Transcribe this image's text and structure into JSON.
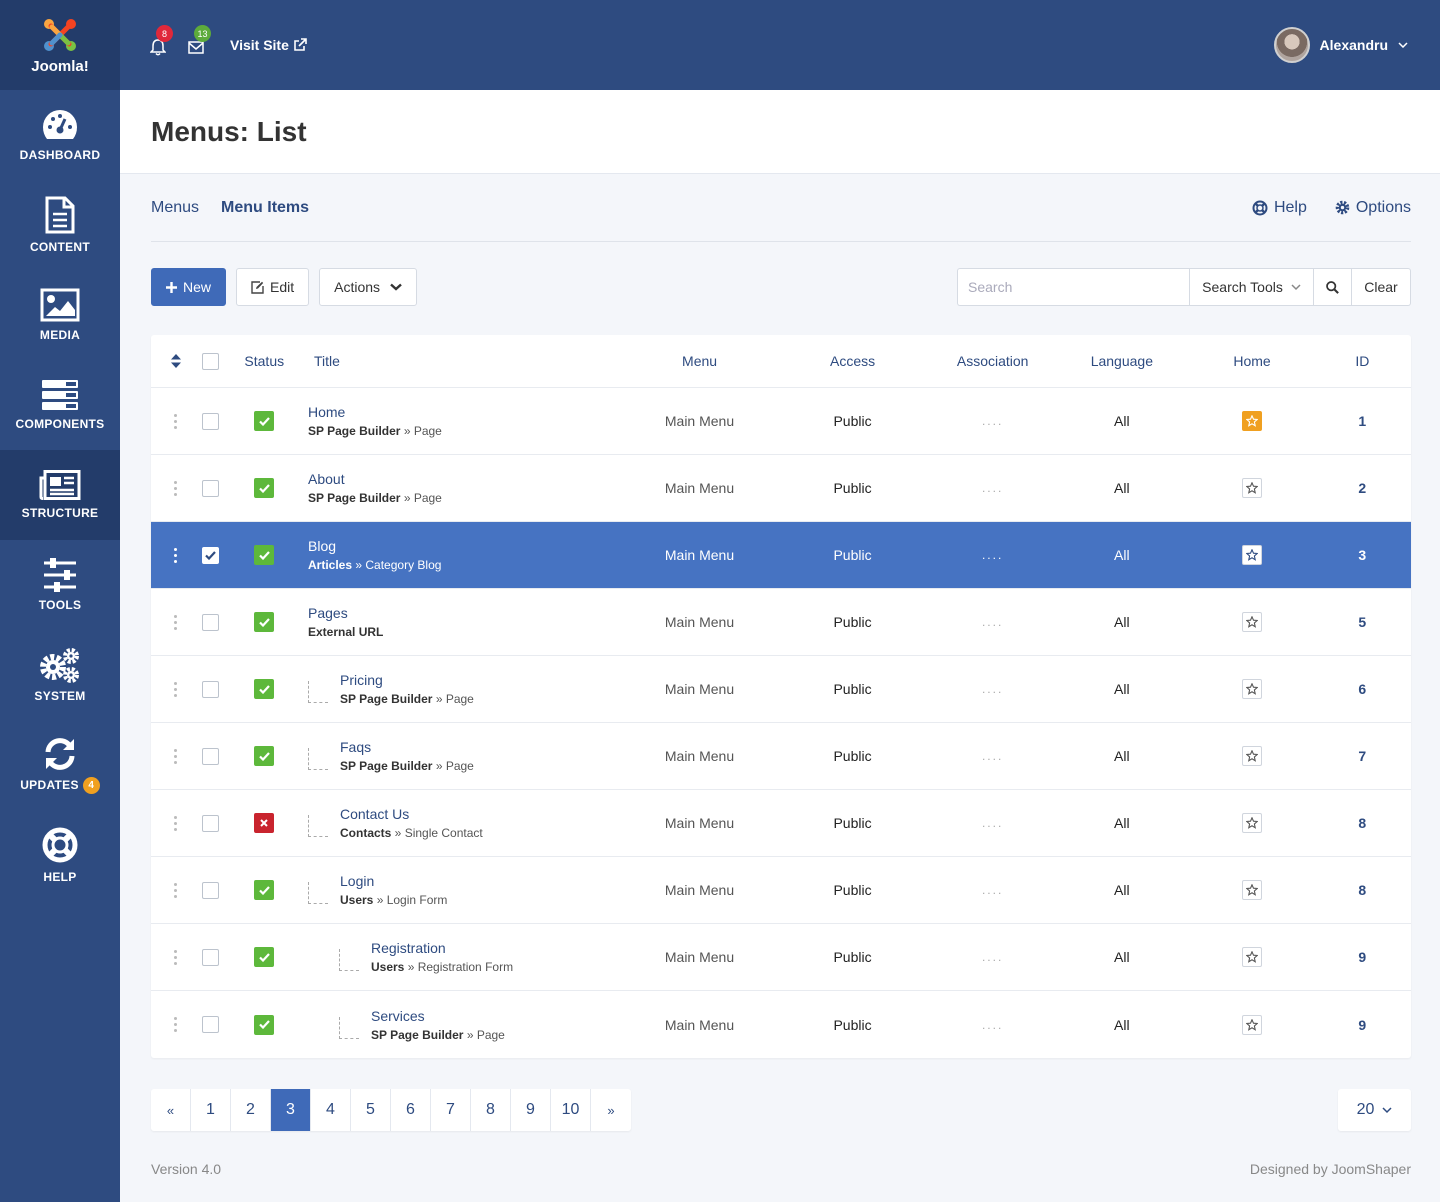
{
  "brand": {
    "name": "Joomla!"
  },
  "sidebar": {
    "items": [
      {
        "label": "DASHBOARD",
        "icon": "dashboard-icon"
      },
      {
        "label": "CONTENT",
        "icon": "document-icon"
      },
      {
        "label": "MEDIA",
        "icon": "image-icon"
      },
      {
        "label": "COMPONENTS",
        "icon": "components-icon"
      },
      {
        "label": "STRUCTURE",
        "icon": "newspaper-icon",
        "active": true
      },
      {
        "label": "TOOLS",
        "icon": "sliders-icon"
      },
      {
        "label": "SYSTEM",
        "icon": "cogs-icon"
      },
      {
        "label": "UPDATES",
        "icon": "refresh-icon",
        "badge": "4"
      },
      {
        "label": "HELP",
        "icon": "lifebuoy-icon"
      }
    ]
  },
  "header": {
    "notifications_count": "8",
    "messages_count": "13",
    "visit_site": "Visit Site",
    "user_name": "Alexandru"
  },
  "page": {
    "title_bold": "Menus:",
    "title_rest": " List"
  },
  "subnav": {
    "menus": "Menus",
    "menu_items": "Menu Items",
    "help": "Help",
    "options": "Options"
  },
  "toolbar": {
    "new": "New",
    "edit": "Edit",
    "actions": "Actions",
    "search_placeholder": "Search",
    "search_tools": "Search Tools",
    "clear": "Clear"
  },
  "table": {
    "headers": {
      "status": "Status",
      "title": "Title",
      "menu": "Menu",
      "access": "Access",
      "association": "Association",
      "language": "Language",
      "home": "Home",
      "id": "ID"
    },
    "rows": [
      {
        "title": "Home",
        "type_bold": "SP Page Builder",
        "type_rest": "Page",
        "level": 0,
        "published": true,
        "menu": "Main Menu",
        "access": "Public",
        "association": "....",
        "language": "All",
        "home": true,
        "id": "1",
        "selected": false
      },
      {
        "title": "About",
        "type_bold": "SP Page Builder",
        "type_rest": "Page",
        "level": 0,
        "published": true,
        "menu": "Main Menu",
        "access": "Public",
        "association": "....",
        "language": "All",
        "home": false,
        "id": "2",
        "selected": false
      },
      {
        "title": "Blog",
        "type_bold": "Articles",
        "type_rest": "Category Blog",
        "level": 0,
        "published": true,
        "menu": "Main Menu",
        "access": "Public",
        "association": "....",
        "language": "All",
        "home": false,
        "id": "3",
        "selected": true
      },
      {
        "title": "Pages",
        "type_bold": "External URL",
        "type_rest": "",
        "level": 0,
        "published": true,
        "menu": "Main Menu",
        "access": "Public",
        "association": "....",
        "language": "All",
        "home": false,
        "id": "5",
        "selected": false
      },
      {
        "title": "Pricing",
        "type_bold": "SP Page Builder",
        "type_rest": "Page",
        "level": 1,
        "published": true,
        "menu": "Main Menu",
        "access": "Public",
        "association": "....",
        "language": "All",
        "home": false,
        "id": "6",
        "selected": false
      },
      {
        "title": "Faqs",
        "type_bold": "SP Page Builder",
        "type_rest": "Page",
        "level": 1,
        "published": true,
        "menu": "Main Menu",
        "access": "Public",
        "association": "....",
        "language": "All",
        "home": false,
        "id": "7",
        "selected": false
      },
      {
        "title": "Contact Us",
        "type_bold": "Contacts",
        "type_rest": "Single Contact",
        "level": 1,
        "published": false,
        "menu": "Main Menu",
        "access": "Public",
        "association": "....",
        "language": "All",
        "home": false,
        "id": "8",
        "selected": false
      },
      {
        "title": "Login",
        "type_bold": "Users",
        "type_rest": "Login Form",
        "level": 1,
        "published": true,
        "menu": "Main Menu",
        "access": "Public",
        "association": "....",
        "language": "All",
        "home": false,
        "id": "8",
        "selected": false
      },
      {
        "title": "Registration",
        "type_bold": "Users",
        "type_rest": "Registration Form",
        "level": 2,
        "published": true,
        "menu": "Main Menu",
        "access": "Public",
        "association": "....",
        "language": "All",
        "home": false,
        "id": "9",
        "selected": false
      },
      {
        "title": "Services",
        "type_bold": "SP Page Builder",
        "type_rest": "Page",
        "level": 2,
        "published": true,
        "menu": "Main Menu",
        "access": "Public",
        "association": "....",
        "language": "All",
        "home": false,
        "id": "9",
        "selected": false
      }
    ]
  },
  "pagination": {
    "prev": "«",
    "pages": [
      "1",
      "2",
      "3",
      "4",
      "5",
      "6",
      "7",
      "8",
      "9",
      "10"
    ],
    "current": "3",
    "next": "»",
    "per_page": "20"
  },
  "footer": {
    "version": "Version 4.0",
    "credit": "Designed by JoomShaper"
  },
  "colors": {
    "sidebar": "#2e4b80",
    "accent": "#3f6ab8",
    "selected_row": "#4673c2",
    "published": "#5db83b",
    "unpublished": "#c9242e",
    "home_star": "#f0a020"
  }
}
